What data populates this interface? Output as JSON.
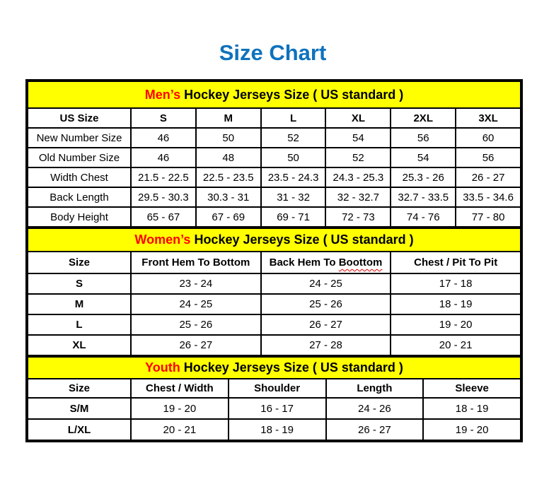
{
  "page_title": "Size Chart",
  "colors": {
    "title_blue": "#0e72bd",
    "header_yellow": "#ffff00",
    "accent_red": "#ff0000",
    "border_black": "#000000"
  },
  "sections_order": [
    "mens",
    "womens",
    "youth"
  ],
  "mens": {
    "title_accent": "Men’s",
    "title_rest": " Hockey Jerseys Size ( US standard )",
    "columns": [
      "US Size",
      "S",
      "M",
      "L",
      "XL",
      "2XL",
      "3XL"
    ],
    "rows": [
      {
        "label": "New Number Size",
        "values": [
          "46",
          "50",
          "52",
          "54",
          "56",
          "60"
        ]
      },
      {
        "label": "Old Number Size",
        "values": [
          "46",
          "48",
          "50",
          "52",
          "54",
          "56"
        ]
      },
      {
        "label": "Width Chest",
        "values": [
          "21.5 - 22.5",
          "22.5 - 23.5",
          "23.5 - 24.3",
          "24.3 - 25.3",
          "25.3 - 26",
          "26 - 27"
        ]
      },
      {
        "label": "Back Length",
        "values": [
          "29.5 - 30.3",
          "30.3 - 31",
          "31 - 32",
          "32 - 32.7",
          "32.7 - 33.5",
          "33.5 - 34.6"
        ]
      },
      {
        "label": "Body Height",
        "values": [
          "65 - 67",
          "67 - 69",
          "69 - 71",
          "72 - 73",
          "74 - 76",
          "77 - 80"
        ]
      }
    ]
  },
  "womens": {
    "title_accent": "Women’s",
    "title_rest": " Hockey Jerseys Size ( US standard )",
    "columns": [
      "Size",
      "Front Hem To Bottom",
      {
        "text": "Back Hem To ",
        "misspelled": "Boottom"
      },
      "Chest / Pit To Pit"
    ],
    "rows": [
      {
        "label": "S",
        "values": [
          "23 - 24",
          "24 - 25",
          "17 - 18"
        ]
      },
      {
        "label": "M",
        "values": [
          "24 - 25",
          "25 - 26",
          "18 - 19"
        ]
      },
      {
        "label": "L",
        "values": [
          "25 - 26",
          "26 - 27",
          "19 - 20"
        ]
      },
      {
        "label": "XL",
        "values": [
          "26 - 27",
          "27 - 28",
          "20 - 21"
        ]
      }
    ]
  },
  "youth": {
    "title_accent": "Youth",
    "title_rest": " Hockey Jerseys Size ( US standard )",
    "columns": [
      "Size",
      "Chest / Width",
      "Shoulder",
      "Length",
      "Sleeve"
    ],
    "rows": [
      {
        "label": "S/M",
        "values": [
          "19 - 20",
          "16 - 17",
          "24 - 26",
          "18 - 19"
        ]
      },
      {
        "label": "L/XL",
        "values": [
          "20 - 21",
          "18 - 19",
          "26 - 27",
          "19 - 20"
        ]
      }
    ]
  }
}
